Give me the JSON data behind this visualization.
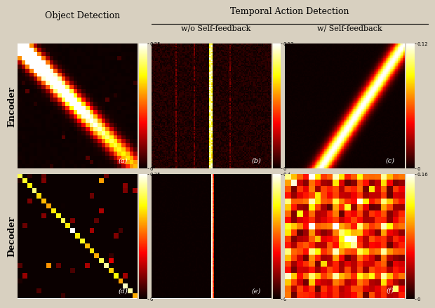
{
  "title_main": "Temporal Action Detection",
  "col_titles": [
    "Object Detection",
    "w/o Self-feedback",
    "w/ Self-feedback"
  ],
  "row_titles": [
    "Encoder",
    "Decoder"
  ],
  "sub_labels": [
    "(a)",
    "(b)",
    "(c)",
    "(d)",
    "(e)",
    "(f)"
  ],
  "colorbar_max": [
    0.25,
    0.12,
    0.12,
    0.25,
    0.4,
    0.16
  ],
  "colorbar_min": [
    0.0,
    0.0,
    0.0,
    0.0,
    0.0,
    0.0
  ],
  "cmap": "hot",
  "fig_bg": "#d8d0c0",
  "seed": 42
}
